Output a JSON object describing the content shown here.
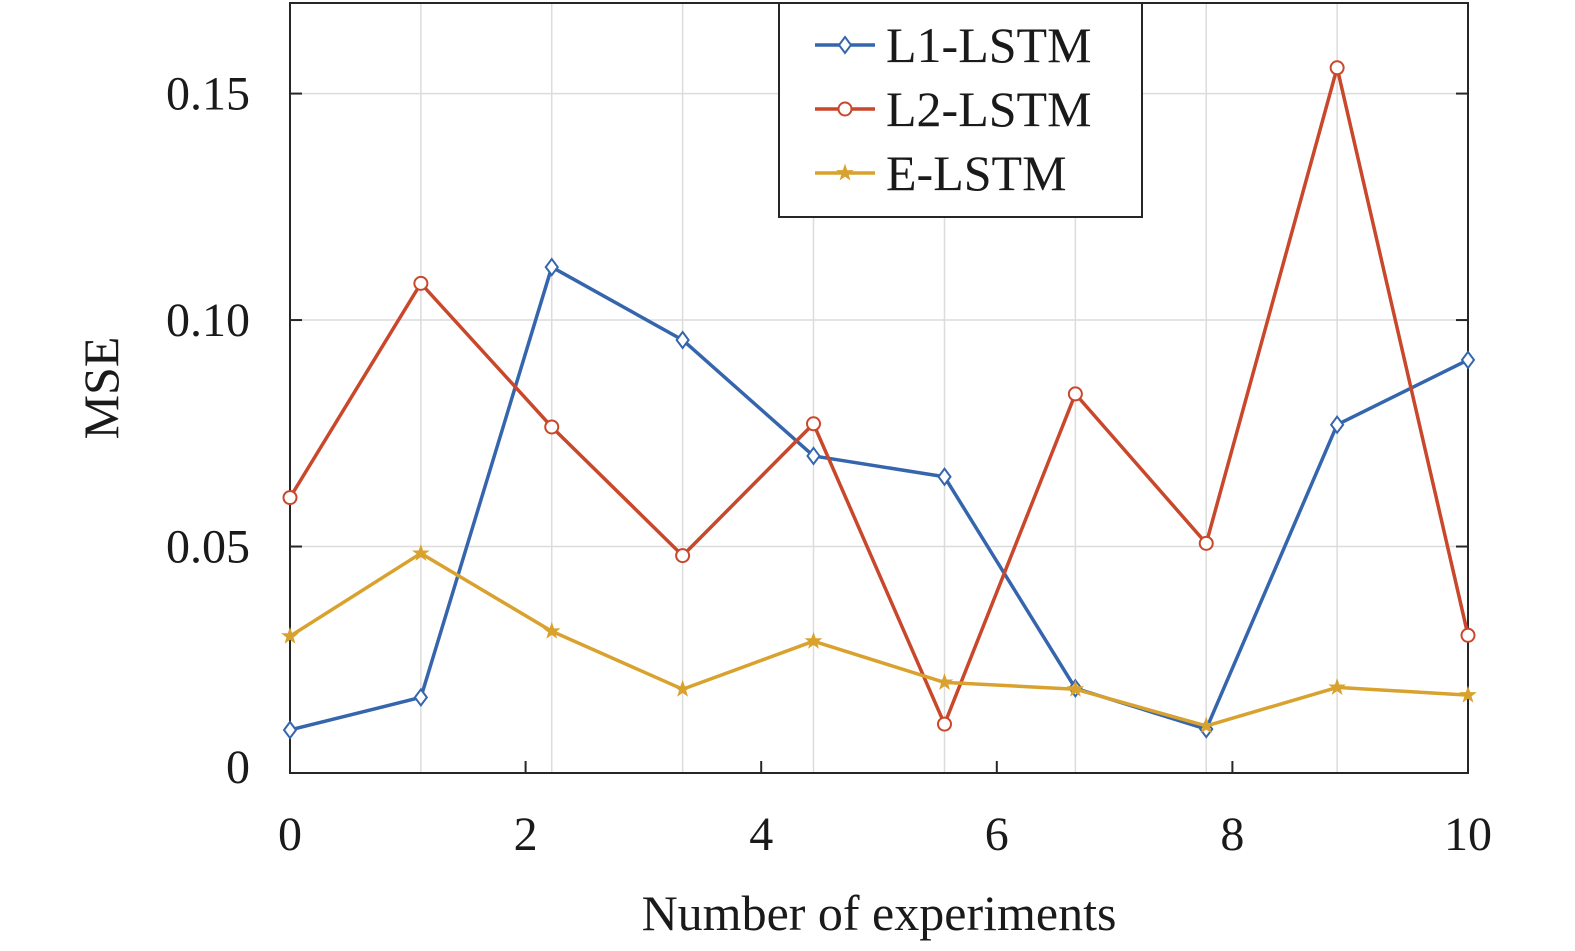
{
  "chart_data": {
    "type": "line",
    "title": "",
    "xlabel": "Number of experiments",
    "ylabel": "MSE",
    "xlim": [
      0,
      10
    ],
    "ylim": [
      0,
      0.17
    ],
    "xticks": [
      0,
      2,
      4,
      6,
      8,
      10
    ],
    "xtick_labels": [
      "0",
      "2",
      "4",
      "6",
      "8",
      "10"
    ],
    "yticks": [
      0,
      0.05,
      0.1,
      0.15
    ],
    "ytick_labels": [
      "0",
      "0.05",
      "0.10",
      "0.15"
    ],
    "grid": true,
    "legend_placement": "top-center",
    "x": [
      0,
      1.111,
      2.222,
      3.333,
      4.444,
      5.556,
      6.667,
      7.778,
      8.889,
      10
    ],
    "series": [
      {
        "name": "L1-LSTM",
        "color": "#3566ad",
        "marker": "diamond",
        "values": [
          0.0095,
          0.0167,
          0.1117,
          0.0956,
          0.07,
          0.0654,
          0.0187,
          0.0097,
          0.0769,
          0.0912
        ]
      },
      {
        "name": "L2-LSTM",
        "color": "#c9472a",
        "marker": "circle",
        "values": [
          0.0608,
          0.1081,
          0.0764,
          0.048,
          0.0771,
          0.0108,
          0.0837,
          0.0507,
          0.1557,
          0.0304
        ]
      },
      {
        "name": "E-LSTM",
        "color": "#d9a22e",
        "marker": "pentagram",
        "values": [
          0.0302,
          0.0485,
          0.0313,
          0.0185,
          0.0291,
          0.02,
          0.0185,
          0.0104,
          0.0189,
          0.0172
        ]
      }
    ]
  }
}
